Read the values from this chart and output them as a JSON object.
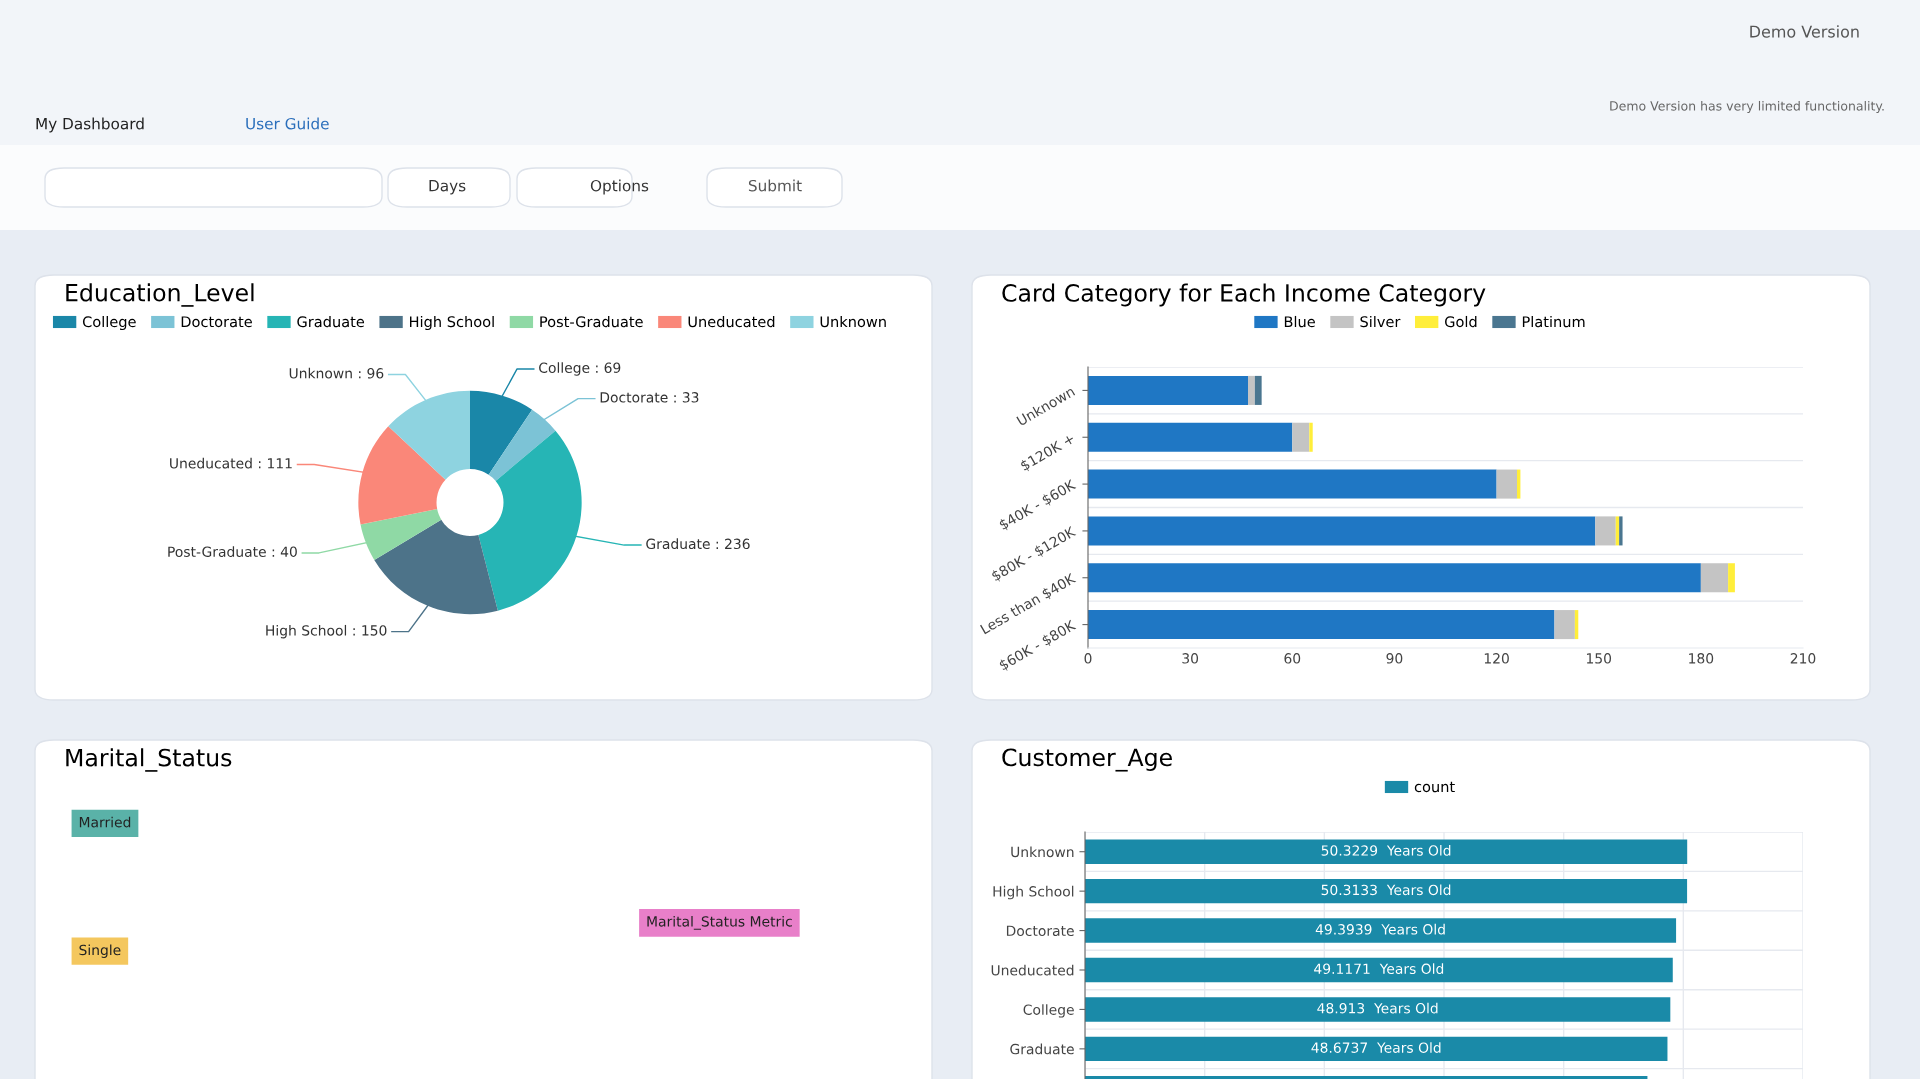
{
  "chart_data": [
    {
      "type": "other",
      "annotations": [
        "Demo Version",
        "Demo Version has very limited functionality.",
        "My Dashboard",
        "User Guide",
        "Days",
        "Options",
        "Submit"
      ]
    },
    {
      "type": "donut",
      "title": "Education_Level",
      "legend": "top",
      "value_labels": [
        "College : 69",
        "Doctorate : 33",
        "Graduate : 236",
        "High School : 150",
        "Post-Graduate : 40",
        "Uneducated : 111",
        "Unknown : 96"
      ],
      "categories": [
        "College",
        "Doctorate",
        "Graduate",
        "High School",
        "Post-Graduate",
        "Uneducated",
        "Unknown"
      ],
      "values": [
        69,
        33,
        236,
        150,
        40,
        111,
        96
      ],
      "colors": [
        "#1a87a8",
        "#7cc3d6",
        "#26b5b5",
        "#4d7389",
        "#8fd9a5",
        "#fa8779",
        "#8ed3e0"
      ]
    },
    {
      "type": "bar",
      "title": "Card Category for Each Income Category",
      "orientation": "horizontal",
      "stacked": true,
      "legend": "top",
      "grid": "y",
      "categories": [
        "Unknown",
        "$120K +",
        "$40K - $60K",
        "$80K - $120K",
        "Less than $40K",
        "$60K - $80K"
      ],
      "xlim": [
        0,
        210
      ],
      "xticks": [
        0,
        30,
        60,
        90,
        120,
        150,
        180,
        210
      ],
      "series": [
        {
          "name": "Blue",
          "color": "#1f77c4",
          "values": [
            47,
            60,
            120,
            149,
            180,
            137
          ]
        },
        {
          "name": "Silver",
          "color": "#c4c4c4",
          "values": [
            2,
            5,
            6,
            6,
            8,
            6
          ]
        },
        {
          "name": "Gold",
          "color": "#ffee3a",
          "values": [
            0,
            1,
            1,
            1,
            2,
            1
          ]
        },
        {
          "name": "Platinum",
          "color": "#4a7690",
          "values": [
            2,
            0,
            0,
            1,
            0,
            0
          ]
        }
      ]
    },
    {
      "type": "other",
      "title": "Marital_Status",
      "categories": [
        "Married",
        "Single",
        "Marital_Status Metric"
      ],
      "colors": [
        "#5ab2a8",
        "#f4c75e",
        "#e87fc9"
      ]
    },
    {
      "type": "bar",
      "title": "Customer_Age",
      "orientation": "horizontal",
      "legend": "top",
      "grid": true,
      "tick_labels": "y",
      "categories": [
        "Unknown",
        "High School",
        "Doctorate",
        "Uneducated",
        "College",
        "Graduate",
        null
      ],
      "xlim": [
        0,
        60
      ],
      "xticks": [
        {
          "value": 0,
          "label": null
        },
        {
          "value": 10,
          "label": null
        },
        {
          "value": 20,
          "label": null
        },
        {
          "value": 30,
          "label": null
        },
        {
          "value": 40,
          "label": null
        },
        {
          "value": 50,
          "label": null
        },
        {
          "value": 60,
          "label": null
        }
      ],
      "series": [
        {
          "name": "count",
          "color": "#1a8aa8",
          "values": [
            50.3229,
            50.3133,
            49.3939,
            49.1171,
            48.913,
            48.6737,
            47
          ],
          "value_labels": [
            "50.3229  Years Old",
            "50.3133  Years Old",
            "49.3939  Years Old",
            "49.1171  Years Old",
            "48.913  Years Old",
            "48.6737  Years Old",
            null
          ]
        }
      ]
    }
  ]
}
